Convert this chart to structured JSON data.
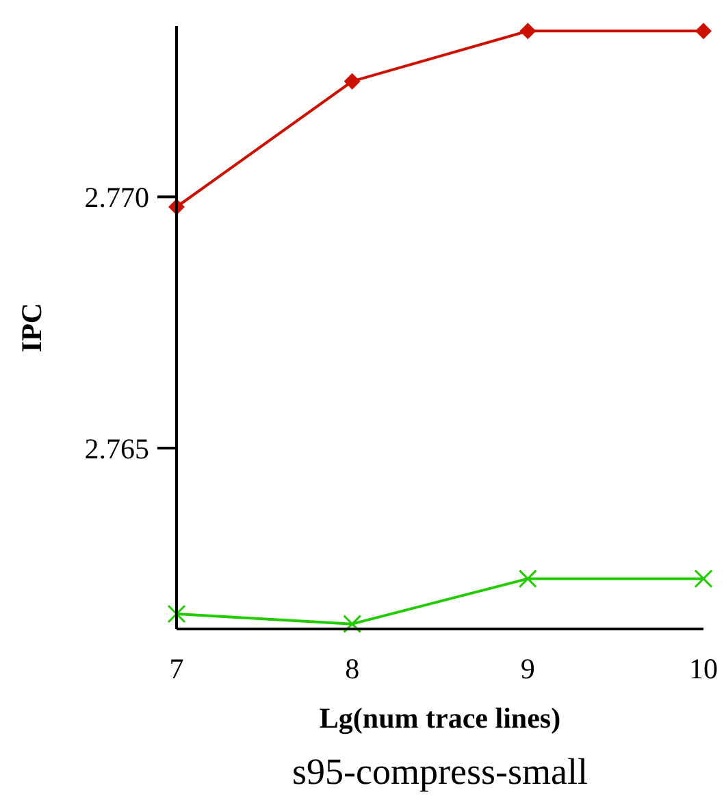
{
  "chart_data": {
    "type": "line",
    "title": "s95-compress-small",
    "xlabel": "Lg(num trace lines)",
    "ylabel": "IPC",
    "x": [
      7,
      8,
      9,
      10
    ],
    "series": [
      {
        "color": "#cc1100",
        "marker": "diamond",
        "values": [
          2.7698,
          2.7723,
          2.7733,
          2.7733
        ]
      },
      {
        "color": "#22cc00",
        "marker": "cross",
        "values": [
          2.7617,
          2.7615,
          2.7624,
          2.7624
        ]
      }
    ],
    "xlim": [
      7,
      10
    ],
    "xticks": [
      7,
      8,
      9,
      10
    ],
    "ylim": [
      2.7614,
      2.7734
    ],
    "yticks": [
      {
        "value": 2.765,
        "label": "2.765"
      },
      {
        "value": 2.77,
        "label": "2.770"
      }
    ],
    "grid": false
  }
}
